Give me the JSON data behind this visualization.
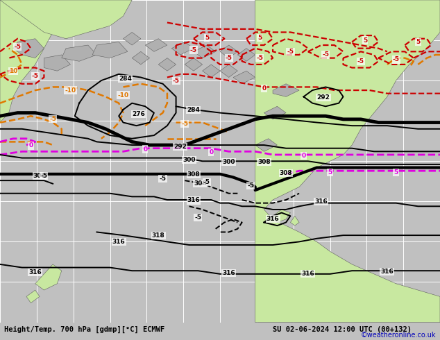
{
  "title_left": "Height/Temp. 700 hPa [gdmp][°C] ECMWF",
  "title_right": "SU 02-06-2024 12:00 UTC (00+132)",
  "credit": "©weatheronline.co.uk",
  "bg_ocean": "#c8c8c8",
  "bg_land": "#c8e8a0",
  "bg_gray_land": "#b0b0b0",
  "grid_color": "#ffffff",
  "title_fontsize": 7.5,
  "credit_fontsize": 7,
  "fig_width": 6.34,
  "fig_height": 4.9,
  "dpi": 100,
  "orange": "#e07800",
  "red": "#cc0000",
  "magenta": "#e000e0",
  "black": "#000000"
}
